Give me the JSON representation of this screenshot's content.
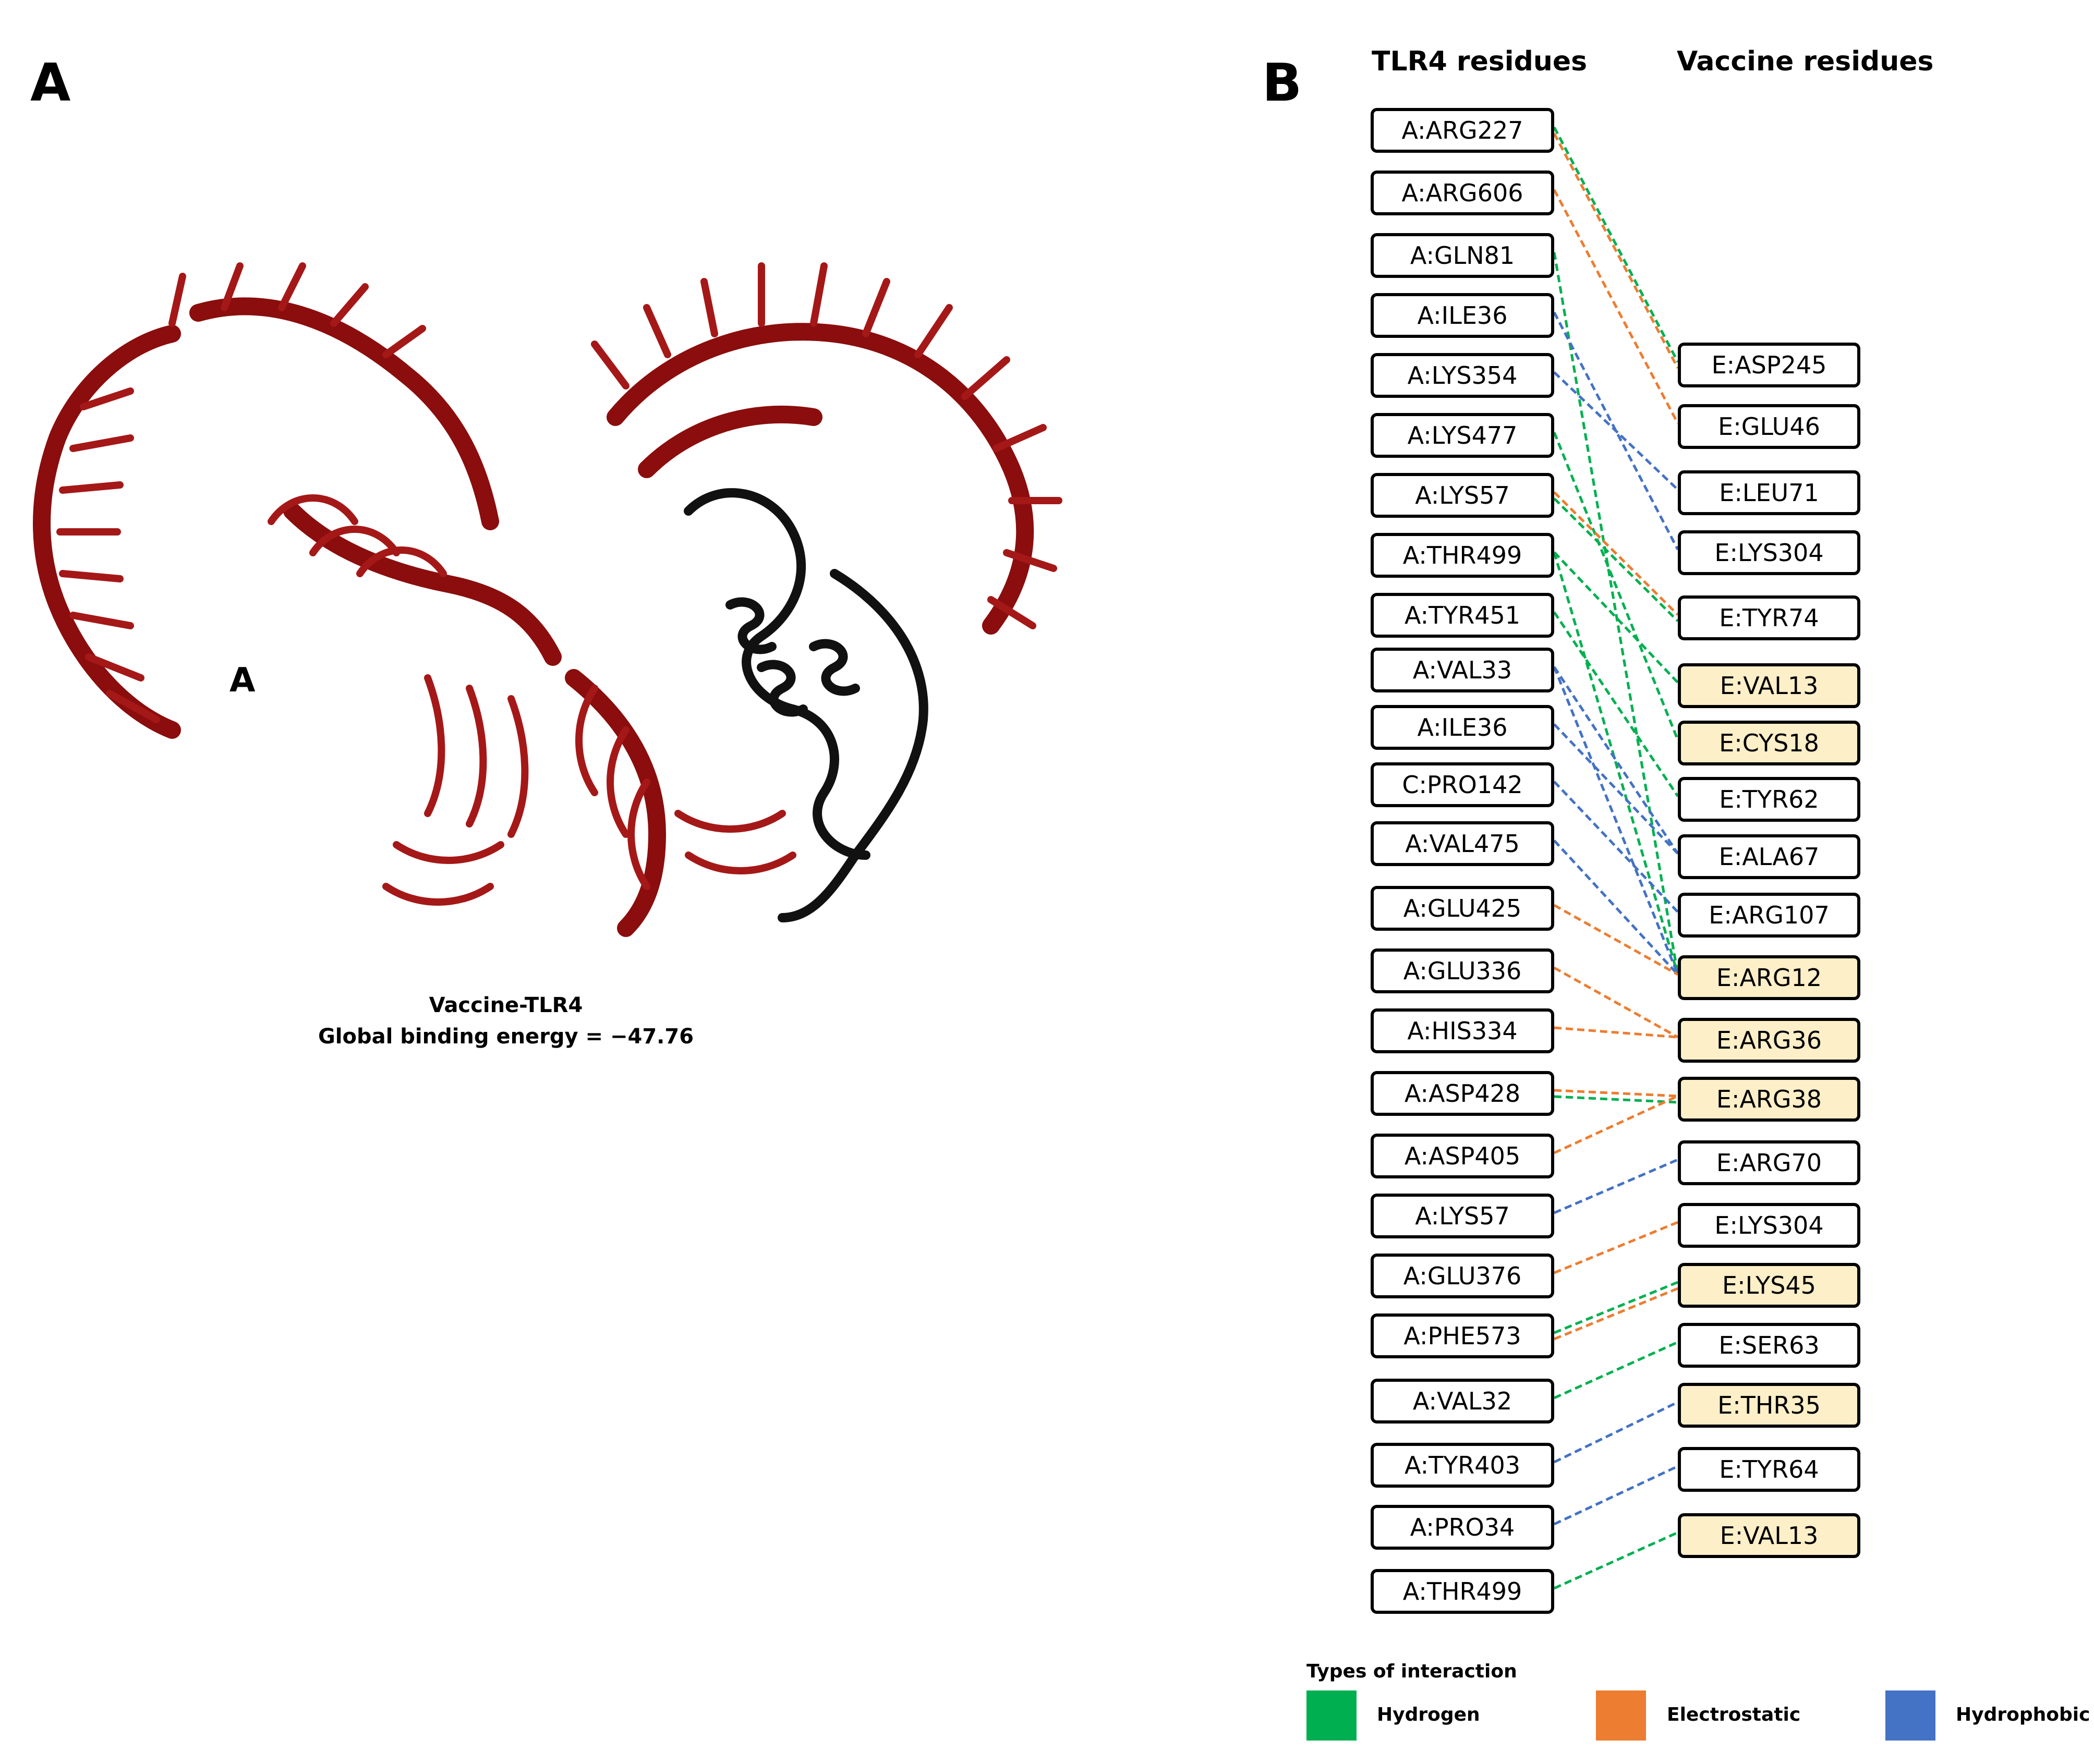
{
  "panel_a": {
    "letter": "A",
    "protein_label": "A",
    "caption_line1": "Vaccine-TLR4",
    "caption_line2": "Global binding energy = −47.76",
    "colors": {
      "tlr4": "#8b0d0d",
      "vaccine": "#111111"
    }
  },
  "panel_b": {
    "letter": "B",
    "left_header": "TLR4 residues",
    "right_header": "Vaccine residues",
    "tlr4_residues": [
      "A:ARG227",
      "A:ARG606",
      "A:GLN81",
      "A:ILE36",
      "A:LYS354",
      "A:LYS477",
      "A:LYS57",
      "A:THR499",
      "A:TYR451",
      "A:VAL33",
      "A:ILE36",
      "C:PRO142",
      "A:VAL475",
      "A:GLU425",
      "A:GLU336",
      "A:HIS334",
      "A:ASP428",
      "A:ASP405",
      "A:LYS57",
      "A:GLU376",
      "A:PHE573",
      "A:VAL32",
      "A:TYR403",
      "A:PRO34",
      "A:THR499"
    ],
    "vaccine_residues": [
      {
        "label": "E:ASP245",
        "highlight": false
      },
      {
        "label": "E:GLU46",
        "highlight": false
      },
      {
        "label": "E:LEU71",
        "highlight": false
      },
      {
        "label": "E:LYS304",
        "highlight": false
      },
      {
        "label": "E:TYR74",
        "highlight": false
      },
      {
        "label": "E:VAL13",
        "highlight": true
      },
      {
        "label": "E:CYS18",
        "highlight": true
      },
      {
        "label": "E:TYR62",
        "highlight": false
      },
      {
        "label": "E:ALA67",
        "highlight": false
      },
      {
        "label": "E:ARG107",
        "highlight": false
      },
      {
        "label": "E:ARG12",
        "highlight": true
      },
      {
        "label": "E:ARG36",
        "highlight": true
      },
      {
        "label": "E:ARG38",
        "highlight": true
      },
      {
        "label": "E:ARG70",
        "highlight": false
      },
      {
        "label": "E:LYS304",
        "highlight": false
      },
      {
        "label": "E:LYS45",
        "highlight": true
      },
      {
        "label": "E:SER63",
        "highlight": false
      },
      {
        "label": "E:THR35",
        "highlight": true
      },
      {
        "label": "E:TYR64",
        "highlight": false
      },
      {
        "label": "E:VAL13",
        "highlight": true
      }
    ],
    "interactions": [
      {
        "from": 0,
        "to": 0,
        "type": "hydrogen"
      },
      {
        "from": 0,
        "to": 0,
        "type": "electrostatic"
      },
      {
        "from": 1,
        "to": 1,
        "type": "electrostatic"
      },
      {
        "from": 2,
        "to": 10,
        "type": "hydrogen"
      },
      {
        "from": 3,
        "to": 3,
        "type": "hydrophobic"
      },
      {
        "from": 4,
        "to": 2,
        "type": "hydrophobic"
      },
      {
        "from": 5,
        "to": 6,
        "type": "hydrogen"
      },
      {
        "from": 6,
        "to": 4,
        "type": "electrostatic"
      },
      {
        "from": 6,
        "to": 4,
        "type": "hydrogen"
      },
      {
        "from": 7,
        "to": 5,
        "type": "hydrogen"
      },
      {
        "from": 7,
        "to": 10,
        "type": "hydrogen"
      },
      {
        "from": 8,
        "to": 7,
        "type": "hydrogen"
      },
      {
        "from": 9,
        "to": 8,
        "type": "hydrophobic"
      },
      {
        "from": 9,
        "to": 10,
        "type": "hydrophobic"
      },
      {
        "from": 10,
        "to": 8,
        "type": "hydrophobic"
      },
      {
        "from": 11,
        "to": 9,
        "type": "hydrophobic"
      },
      {
        "from": 12,
        "to": 10,
        "type": "hydrophobic"
      },
      {
        "from": 13,
        "to": 10,
        "type": "electrostatic"
      },
      {
        "from": 14,
        "to": 11,
        "type": "electrostatic"
      },
      {
        "from": 15,
        "to": 11,
        "type": "electrostatic"
      },
      {
        "from": 16,
        "to": 12,
        "type": "electrostatic"
      },
      {
        "from": 16,
        "to": 12,
        "type": "hydrogen"
      },
      {
        "from": 17,
        "to": 12,
        "type": "electrostatic"
      },
      {
        "from": 18,
        "to": 13,
        "type": "hydrophobic"
      },
      {
        "from": 19,
        "to": 14,
        "type": "electrostatic"
      },
      {
        "from": 20,
        "to": 15,
        "type": "hydrogen"
      },
      {
        "from": 20,
        "to": 15,
        "type": "electrostatic"
      },
      {
        "from": 21,
        "to": 16,
        "type": "hydrogen"
      },
      {
        "from": 22,
        "to": 17,
        "type": "hydrophobic"
      },
      {
        "from": 23,
        "to": 18,
        "type": "hydrophobic"
      },
      {
        "from": 24,
        "to": 19,
        "type": "hydrogen"
      }
    ],
    "legend": {
      "title": "Types of interaction",
      "items": [
        {
          "key": "hydrogen",
          "label": "Hydrogen",
          "color": "#00b050"
        },
        {
          "key": "electrostatic",
          "label": "Electrostatic",
          "color": "#ed7d31"
        },
        {
          "key": "hydrophobic",
          "label": "Hydrophobic",
          "color": "#4472c4"
        }
      ]
    }
  }
}
